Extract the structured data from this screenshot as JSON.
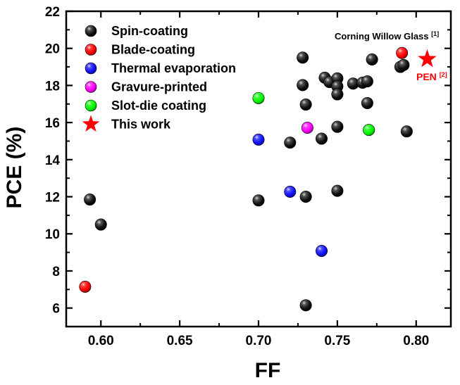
{
  "chart_data": {
    "type": "scatter",
    "xlabel": "FF",
    "ylabel": "PCE (%)",
    "xlim": [
      0.578,
      0.822
    ],
    "ylim": [
      5,
      22
    ],
    "x_ticks": [
      "0.60",
      "0.65",
      "0.70",
      "0.75",
      "0.80"
    ],
    "y_ticks": [
      "6",
      "8",
      "10",
      "12",
      "14",
      "16",
      "18",
      "20",
      "22"
    ],
    "legend_position": "top-left",
    "series": [
      {
        "name": "Spin-coating",
        "color": "#000000",
        "marker": "sphere",
        "points": [
          {
            "x": 0.593,
            "y": 11.85
          },
          {
            "x": 0.6,
            "y": 10.5
          },
          {
            "x": 0.7,
            "y": 11.8
          },
          {
            "x": 0.72,
            "y": 14.92
          },
          {
            "x": 0.728,
            "y": 19.5
          },
          {
            "x": 0.728,
            "y": 18.02
          },
          {
            "x": 0.73,
            "y": 16.97
          },
          {
            "x": 0.73,
            "y": 12.0
          },
          {
            "x": 0.73,
            "y": 6.15
          },
          {
            "x": 0.74,
            "y": 15.13
          },
          {
            "x": 0.742,
            "y": 18.42
          },
          {
            "x": 0.745,
            "y": 18.18
          },
          {
            "x": 0.75,
            "y": 18.38
          },
          {
            "x": 0.75,
            "y": 17.95
          },
          {
            "x": 0.75,
            "y": 17.52
          },
          {
            "x": 0.75,
            "y": 15.77
          },
          {
            "x": 0.75,
            "y": 12.32
          },
          {
            "x": 0.76,
            "y": 18.1
          },
          {
            "x": 0.766,
            "y": 18.15
          },
          {
            "x": 0.769,
            "y": 18.22
          },
          {
            "x": 0.769,
            "y": 17.05
          },
          {
            "x": 0.772,
            "y": 19.4
          },
          {
            "x": 0.79,
            "y": 19.0
          },
          {
            "x": 0.792,
            "y": 19.1
          },
          {
            "x": 0.794,
            "y": 15.52
          }
        ]
      },
      {
        "name": "Blade-coating",
        "color": "#ff0000",
        "marker": "sphere",
        "points": [
          {
            "x": 0.59,
            "y": 7.15
          },
          {
            "x": 0.791,
            "y": 19.75
          }
        ]
      },
      {
        "name": "Thermal evaporation",
        "color": "#1010ff",
        "marker": "sphere",
        "points": [
          {
            "x": 0.7,
            "y": 15.08
          },
          {
            "x": 0.72,
            "y": 12.27
          },
          {
            "x": 0.74,
            "y": 9.08
          }
        ]
      },
      {
        "name": "Gravure-printed",
        "color": "#ff00ff",
        "marker": "sphere",
        "points": [
          {
            "x": 0.731,
            "y": 15.72
          }
        ]
      },
      {
        "name": "Slot-die coating",
        "color": "#00ff00",
        "marker": "sphere",
        "points": [
          {
            "x": 0.7,
            "y": 17.32
          },
          {
            "x": 0.77,
            "y": 15.6
          }
        ]
      },
      {
        "name": "This work",
        "color": "#ff0000",
        "marker": "star",
        "points": [
          {
            "x": 0.807,
            "y": 19.42
          }
        ]
      }
    ],
    "annotations": [
      {
        "id": "corning",
        "text": "Corning Willow Glass",
        "ref": "[1]",
        "color": "#000000"
      },
      {
        "id": "pen",
        "text": "PEN",
        "ref": "[2]",
        "color": "#ff0000"
      }
    ]
  }
}
